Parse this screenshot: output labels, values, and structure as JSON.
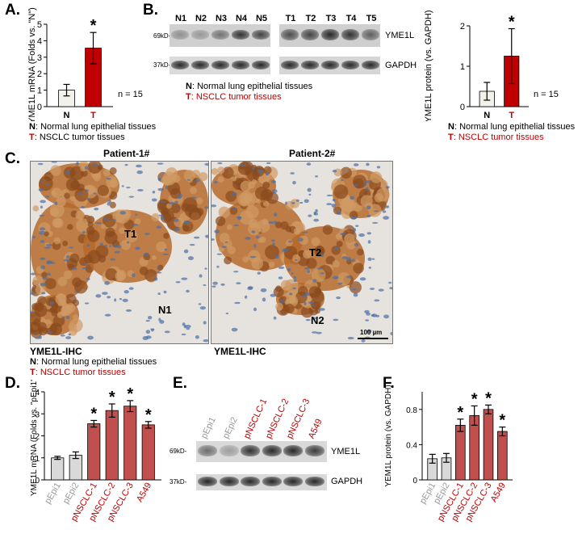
{
  "panels": {
    "A": {
      "letter": "A.",
      "ylabel": "YME1L mRNA (Folds vs. \"N\")",
      "n_label": "n = 15",
      "star": "*"
    },
    "B": {
      "letter": "B.",
      "ylabel": "YME1L protein (vs. GAPDH)",
      "n_label": "n = 15",
      "star": "*",
      "lanes_n": [
        "N1",
        "N2",
        "N3",
        "N4",
        "N5"
      ],
      "lanes_t": [
        "T1",
        "T2",
        "T3",
        "T4",
        "T5"
      ],
      "mw_top": "69kD-",
      "mw_bottom": "37kD-",
      "band_top": "YME1L",
      "band_bottom": "GAPDH"
    },
    "C": {
      "letter": "C.",
      "patient1": "Patient-1#",
      "patient2": "Patient-2#",
      "t1": "T1",
      "t2": "T2",
      "n1": "N1",
      "n2": "N2",
      "scale": "100 µm",
      "ihc1": "YME1L-IHC",
      "ihc2": "YME1L-IHC"
    },
    "D": {
      "letter": "D.",
      "ylabel": "YME1L mRNA (Folds vs. \"pEpi1\")",
      "star": "*"
    },
    "E": {
      "letter": "E.",
      "lanes": [
        "pEpi1",
        "pEpi2",
        "pNSCLC-1",
        "pNSCLC-2",
        "pNSCLC-3",
        "A549"
      ],
      "mw_top": "69kD-",
      "mw_bottom": "37kD-",
      "band_top": "YME1L",
      "band_bottom": "GAPDH"
    },
    "F": {
      "letter": "F.",
      "ylabel": "YEM1L protein (vs. GAPDH)",
      "star": "*"
    }
  },
  "legend": {
    "n_key": "N",
    "n_text": ": Normal lung epithelial tissues",
    "t_key": "T",
    "t_text": ": NSCLC tumor tissues"
  },
  "colors": {
    "normal": "#f2f2ea",
    "tumor": "#c00000",
    "epi": "#d9d9d9",
    "cancer": "#c0504d",
    "red_text": "#c00000",
    "gray_text": "#999999"
  },
  "chart_data": [
    {
      "id": "A",
      "type": "bar",
      "categories": [
        "N",
        "T"
      ],
      "values": [
        1.0,
        3.55
      ],
      "errors": [
        0.35,
        0.95
      ],
      "ylim": [
        0,
        5
      ],
      "yticks": [
        0,
        1,
        2,
        3,
        4,
        5
      ],
      "ylabel": "YME1L mRNA (Folds vs. \"N\")",
      "significant": [
        false,
        true
      ]
    },
    {
      "id": "B",
      "type": "bar",
      "categories": [
        "N",
        "T"
      ],
      "values": [
        0.38,
        1.25
      ],
      "errors": [
        0.22,
        0.68
      ],
      "ylim": [
        0,
        2
      ],
      "yticks": [
        0,
        1,
        2
      ],
      "ylabel": "YME1L protein (vs. GAPDH)",
      "significant": [
        false,
        true
      ]
    },
    {
      "id": "D",
      "type": "bar",
      "categories": [
        "pEpi1",
        "pEpi2",
        "pNSCLC-1",
        "pNSCLC-2",
        "pNSCLC-3",
        "A549"
      ],
      "values": [
        1.0,
        1.12,
        2.55,
        3.15,
        3.35,
        2.5
      ],
      "errors": [
        0.07,
        0.15,
        0.15,
        0.3,
        0.25,
        0.15
      ],
      "ylim": [
        0,
        4
      ],
      "yticks": [
        0,
        1,
        2,
        3,
        4
      ],
      "ylabel": "YME1L mRNA (Folds vs. \"pEpi1\")",
      "significant": [
        false,
        false,
        true,
        true,
        true,
        true
      ]
    },
    {
      "id": "F",
      "type": "bar",
      "categories": [
        "pEpi1",
        "pEpi2",
        "pNSCLC-1",
        "pNSCLC-2",
        "pNSCLC-3",
        "A549"
      ],
      "values": [
        0.24,
        0.25,
        0.62,
        0.73,
        0.8,
        0.55
      ],
      "errors": [
        0.05,
        0.05,
        0.07,
        0.11,
        0.05,
        0.05
      ],
      "ylim": [
        0,
        1.0
      ],
      "yticks": [
        0,
        0.4,
        0.8
      ],
      "ylabel": "YEM1L protein (vs. GAPDH)",
      "significant": [
        false,
        false,
        true,
        true,
        true,
        true
      ]
    }
  ]
}
